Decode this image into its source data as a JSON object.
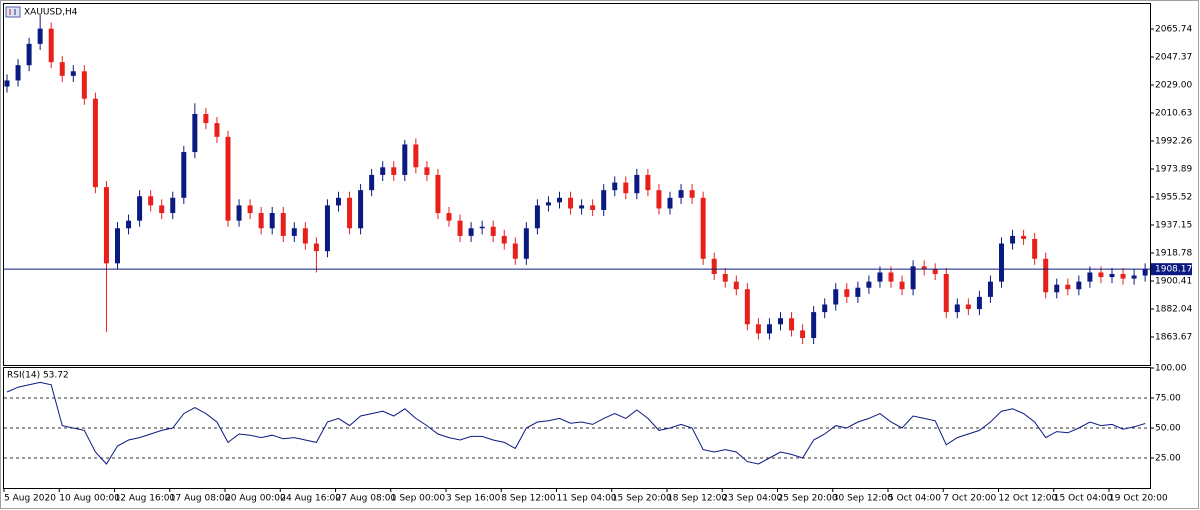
{
  "chart_data": [
    {
      "type": "candlestick",
      "title": "XAUUSD,H4",
      "open": [
        2028,
        2032,
        2042,
        2056,
        2066,
        2044,
        2035,
        2038,
        2020,
        1962,
        1912,
        1935,
        1940,
        1956,
        1950,
        1945,
        1955,
        1985,
        2010,
        2004,
        1995,
        1940,
        1950,
        1945,
        1935,
        1945,
        1930,
        1935,
        1925,
        1920,
        1950,
        1955,
        1935,
        1960,
        1970,
        1975,
        1970,
        1990,
        1975,
        1970,
        1945,
        1940,
        1930,
        1935,
        1936,
        1930,
        1925,
        1915,
        1935,
        1950,
        1952,
        1955,
        1948,
        1950,
        1947,
        1960,
        1965,
        1958,
        1970,
        1960,
        1948,
        1955,
        1960,
        1955,
        1915,
        1905,
        1900,
        1895,
        1872,
        1866,
        1872,
        1876,
        1868,
        1863,
        1880,
        1885,
        1895,
        1890,
        1896,
        1900,
        1906,
        1900,
        1895,
        1910,
        1908,
        1905,
        1880,
        1885,
        1882,
        1890,
        1900,
        1925,
        1930,
        1928,
        1915,
        1893,
        1898,
        1895,
        1900,
        1906,
        1903,
        1905,
        1902,
        1904
      ],
      "high": [
        2036,
        2046,
        2060,
        2075,
        2070,
        2048,
        2042,
        2042,
        2024,
        1966,
        1939,
        1944,
        1960,
        1960,
        1954,
        1959,
        1989,
        2017,
        2014,
        2008,
        1999,
        1954,
        1954,
        1949,
        1949,
        1949,
        1939,
        1939,
        1929,
        1954,
        1959,
        1959,
        1964,
        1974,
        1979,
        1979,
        1993,
        1994,
        1979,
        1974,
        1949,
        1944,
        1939,
        1940,
        1940,
        1934,
        1929,
        1939,
        1954,
        1956,
        1959,
        1959,
        1954,
        1954,
        1964,
        1969,
        1969,
        1974,
        1974,
        1964,
        1959,
        1964,
        1964,
        1959,
        1919,
        1909,
        1904,
        1899,
        1876,
        1876,
        1880,
        1880,
        1872,
        1884,
        1889,
        1899,
        1899,
        1900,
        1904,
        1910,
        1910,
        1904,
        1914,
        1914,
        1912,
        1909,
        1889,
        1889,
        1894,
        1904,
        1929,
        1934,
        1934,
        1932,
        1919,
        1902,
        1902,
        1904,
        1910,
        1910,
        1909,
        1909,
        1908,
        1912
      ],
      "low": [
        2024,
        2028,
        2038,
        2052,
        2040,
        2031,
        2031,
        2016,
        1958,
        1867,
        1908,
        1931,
        1936,
        1946,
        1941,
        1941,
        1951,
        1981,
        2000,
        1991,
        1936,
        1936,
        1941,
        1931,
        1931,
        1926,
        1926,
        1921,
        1906,
        1916,
        1946,
        1931,
        1931,
        1956,
        1966,
        1966,
        1966,
        1971,
        1966,
        1941,
        1936,
        1926,
        1926,
        1931,
        1926,
        1921,
        1911,
        1911,
        1931,
        1946,
        1948,
        1944,
        1944,
        1943,
        1943,
        1956,
        1954,
        1954,
        1956,
        1944,
        1944,
        1951,
        1951,
        1911,
        1901,
        1896,
        1891,
        1868,
        1862,
        1862,
        1868,
        1864,
        1859,
        1859,
        1876,
        1881,
        1886,
        1886,
        1892,
        1896,
        1896,
        1891,
        1891,
        1904,
        1901,
        1876,
        1876,
        1878,
        1878,
        1886,
        1896,
        1921,
        1924,
        1911,
        1889,
        1889,
        1891,
        1891,
        1896,
        1899,
        1899,
        1898,
        1898,
        1900
      ],
      "close": [
        2032,
        2042,
        2056,
        2066,
        2044,
        2035,
        2038,
        2020,
        1962,
        1912,
        1935,
        1940,
        1956,
        1950,
        1945,
        1955,
        1985,
        2010,
        2004,
        1995,
        1940,
        1950,
        1945,
        1935,
        1945,
        1930,
        1935,
        1925,
        1920,
        1950,
        1955,
        1935,
        1960,
        1970,
        1975,
        1970,
        1990,
        1975,
        1970,
        1945,
        1940,
        1930,
        1935,
        1936,
        1930,
        1925,
        1915,
        1935,
        1950,
        1952,
        1955,
        1948,
        1950,
        1947,
        1960,
        1965,
        1958,
        1970,
        1960,
        1948,
        1955,
        1960,
        1955,
        1915,
        1905,
        1900,
        1895,
        1872,
        1866,
        1872,
        1876,
        1868,
        1863,
        1880,
        1885,
        1895,
        1890,
        1896,
        1900,
        1906,
        1900,
        1895,
        1910,
        1908,
        1905,
        1880,
        1885,
        1882,
        1890,
        1900,
        1925,
        1930,
        1928,
        1915,
        1893,
        1898,
        1895,
        1900,
        1906,
        1903,
        1905,
        1902,
        1904,
        1908.17
      ],
      "up_color": "#0b1a80",
      "down_color": "#e8201c",
      "last_price": 1908.17,
      "last_price_color": "#0b1a80",
      "ylim": [
        1845.3,
        2082.8
      ],
      "yticks": [
        2065.74,
        2047.37,
        {
          "value": 2029,
          "label": "2029.00"
        },
        2010.63,
        1992.26,
        1973.89,
        1955.52,
        1937.15,
        1918.78,
        1900.41,
        1882.04,
        1863.67
      ]
    },
    {
      "type": "line",
      "title": "RSI(14) 53.72",
      "color": "#0b1a80",
      "categories": [
        "5 Aug 2020",
        null,
        null,
        null,
        null,
        "10 Aug 00:00",
        null,
        null,
        null,
        null,
        "12 Aug 16:00",
        null,
        null,
        null,
        null,
        "17 Aug 08:00",
        null,
        null,
        null,
        null,
        "20 Aug 00:00",
        null,
        null,
        null,
        null,
        "24 Aug 16:00",
        null,
        null,
        null,
        null,
        "27 Aug 08:00",
        null,
        null,
        null,
        null,
        "1 Sep 00:00",
        null,
        null,
        null,
        null,
        "3 Sep 16:00",
        null,
        null,
        null,
        null,
        "8 Sep 12:00",
        null,
        null,
        null,
        null,
        "11 Sep 04:00",
        null,
        null,
        null,
        null,
        "15 Sep 20:00",
        null,
        null,
        null,
        null,
        "18 Sep 12:00",
        null,
        null,
        null,
        null,
        "23 Sep 04:00",
        null,
        null,
        null,
        null,
        "25 Sep 20:00",
        null,
        null,
        null,
        null,
        "30 Sep 12:00",
        null,
        null,
        null,
        null,
        "5 Oct 04:00",
        null,
        null,
        null,
        null,
        "7 Oct 20:00",
        null,
        null,
        null,
        null,
        "12 Oct 12:00",
        null,
        null,
        null,
        null,
        "15 Oct 04:00",
        null,
        null,
        null,
        null,
        "19 Oct 20:00",
        null,
        null,
        null
      ],
      "values": [
        80,
        84,
        86,
        88,
        86,
        52,
        50,
        48,
        30,
        20,
        35,
        40,
        42,
        45,
        48,
        50,
        62,
        67,
        62,
        55,
        38,
        45,
        44,
        42,
        44,
        41,
        42,
        40,
        38,
        55,
        58,
        52,
        60,
        62,
        64,
        60,
        66,
        58,
        52,
        45,
        42,
        40,
        43,
        43,
        40,
        38,
        33,
        50,
        55,
        56,
        58,
        54,
        55,
        53,
        58,
        62,
        58,
        65,
        58,
        48,
        50,
        53,
        50,
        32,
        30,
        32,
        30,
        22,
        20,
        25,
        30,
        28,
        25,
        40,
        45,
        52,
        50,
        55,
        58,
        62,
        55,
        50,
        60,
        58,
        56,
        36,
        42,
        45,
        48,
        55,
        64,
        66,
        62,
        55,
        42,
        47,
        46,
        50,
        55,
        52,
        53,
        49,
        51,
        53.72
      ],
      "ylim": [
        0,
        100
      ],
      "yticks": [
        {
          "value": 100,
          "label": "100.00"
        },
        {
          "value": 75,
          "label": "75.00"
        },
        {
          "value": 50,
          "label": "50.00"
        },
        {
          "value": 25,
          "label": "25.00"
        }
      ]
    }
  ]
}
